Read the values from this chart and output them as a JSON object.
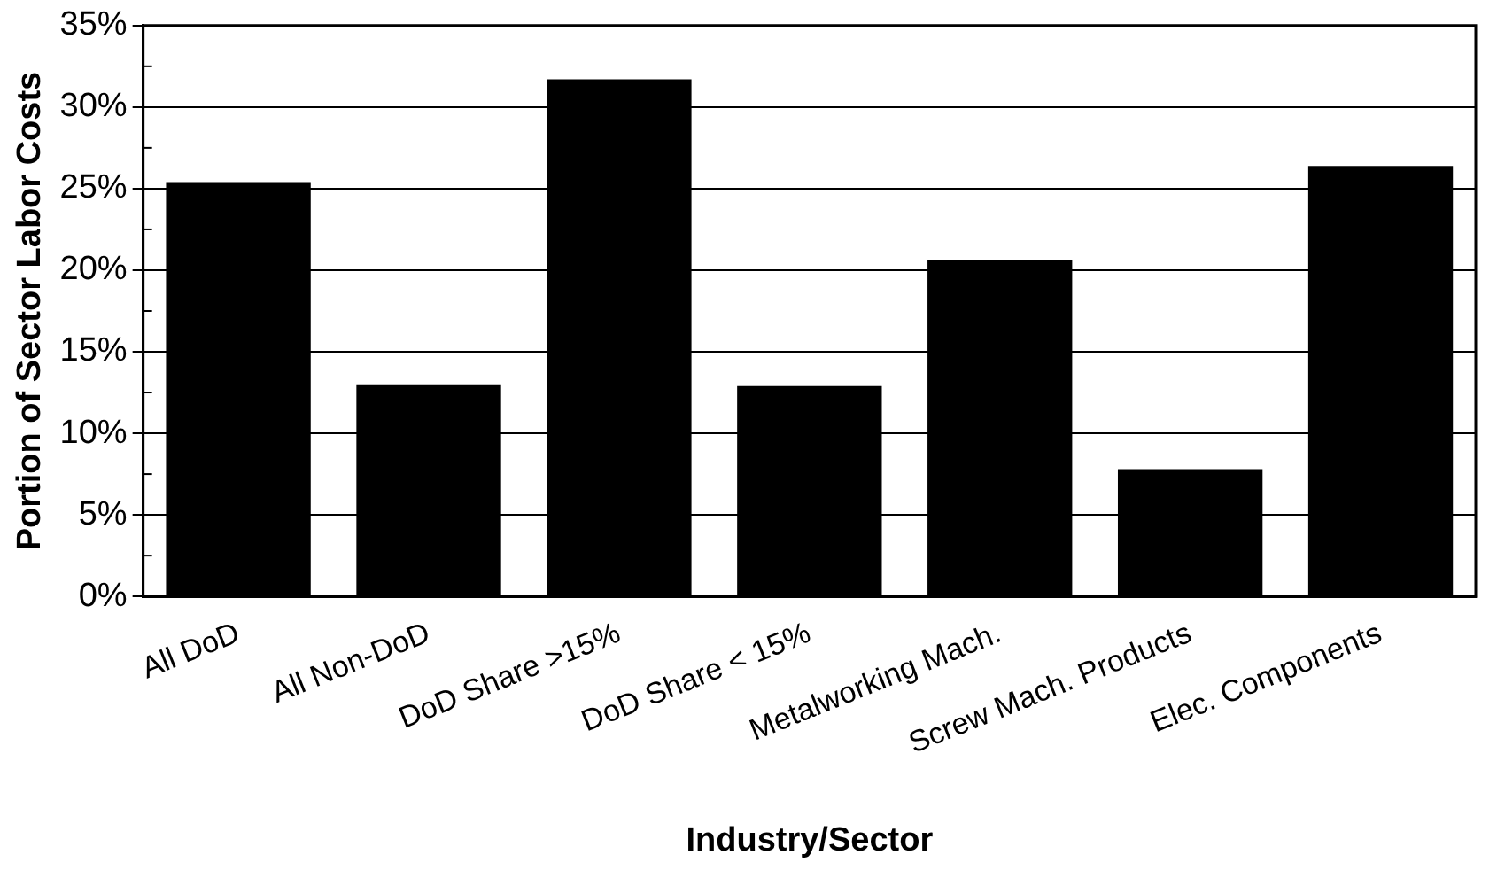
{
  "chart_data": {
    "type": "bar",
    "xlabel": "Industry/Sector",
    "ylabel": "Portion of Sector Labor Costs",
    "categories": [
      "All DoD",
      "All Non-DoD",
      "DoD Share >15%",
      "DoD Share < 15%",
      "Metalworking Mach.",
      "Screw Mach. Products",
      "Elec. Components"
    ],
    "values": [
      25.4,
      13.0,
      31.7,
      12.9,
      20.6,
      7.8,
      26.4
    ],
    "color": "#000000",
    "ylim": [
      0,
      35
    ],
    "yticks": [
      {
        "value": 0,
        "label": "0%"
      },
      {
        "value": 5,
        "label": "5%"
      },
      {
        "value": 10,
        "label": "10%"
      },
      {
        "value": 15,
        "label": "15%"
      },
      {
        "value": 20,
        "label": "20%"
      },
      {
        "value": 25,
        "label": "25%"
      },
      {
        "value": 30,
        "label": "30%"
      },
      {
        "value": 35,
        "label": "35%"
      }
    ],
    "grid": "y",
    "legend": false
  }
}
